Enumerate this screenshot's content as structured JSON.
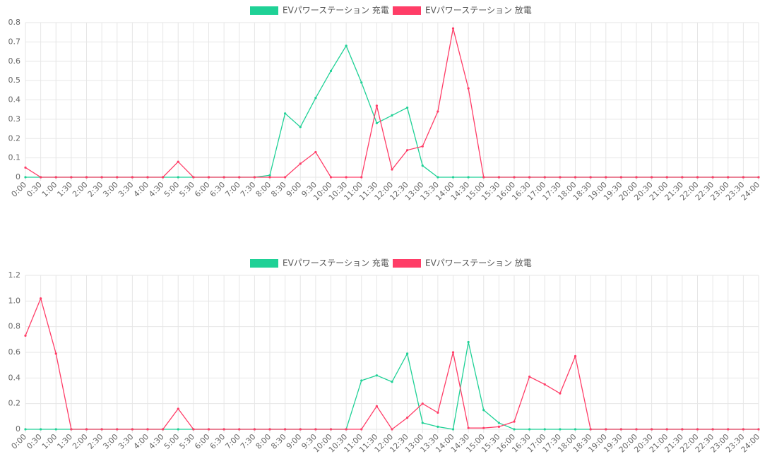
{
  "chart_data": [
    {
      "type": "line",
      "categories": [
        "0:00",
        "0:30",
        "1:00",
        "1:30",
        "2:00",
        "2:30",
        "3:00",
        "3:30",
        "4:00",
        "4:30",
        "5:00",
        "5:30",
        "6:00",
        "6:30",
        "7:00",
        "7:30",
        "8:00",
        "8:30",
        "9:00",
        "9:30",
        "10:00",
        "10:30",
        "11:00",
        "11:30",
        "12:00",
        "12:30",
        "13:00",
        "13:30",
        "14:00",
        "14:30",
        "15:00",
        "15:30",
        "16:00",
        "16:30",
        "17:00",
        "17:30",
        "18:00",
        "18:30",
        "19:00",
        "19:30",
        "20:00",
        "20:30",
        "21:00",
        "21:30",
        "22:00",
        "22:30",
        "23:00",
        "23:30",
        "24:00"
      ],
      "series": [
        {
          "name": "EVパワーステーション 充電",
          "color": "#1fd196",
          "values": [
            0,
            0,
            0,
            0,
            0,
            0,
            0,
            0,
            0,
            0,
            0,
            0,
            0,
            0,
            0,
            0,
            0.01,
            0.33,
            0.26,
            0.41,
            0.55,
            0.68,
            0.49,
            0.28,
            0.32,
            0.36,
            0.06,
            0,
            0,
            0,
            0,
            0,
            0,
            0,
            0,
            0,
            0,
            0,
            0,
            0,
            0,
            0,
            0,
            0,
            0,
            0,
            0,
            0,
            0
          ]
        },
        {
          "name": "EVパワーステーション 放電",
          "color": "#ff3d67",
          "values": [
            0.05,
            0,
            0,
            0,
            0,
            0,
            0,
            0,
            0,
            0,
            0.08,
            0,
            0,
            0,
            0,
            0,
            0,
            0,
            0.07,
            0.13,
            0,
            0,
            0,
            0.37,
            0.04,
            0.14,
            0.16,
            0.34,
            0.77,
            0.46,
            0,
            0,
            0,
            0,
            0,
            0,
            0,
            0,
            0,
            0,
            0,
            0,
            0,
            0,
            0,
            0,
            0,
            0,
            0
          ]
        }
      ],
      "ylim": [
        0,
        0.8
      ],
      "yticks": [
        0,
        0.1,
        0.2,
        0.3,
        0.4,
        0.5,
        0.6,
        0.7,
        0.8
      ],
      "grid": true,
      "legend": "top"
    },
    {
      "type": "line",
      "categories": [
        "0:00",
        "0:30",
        "1:00",
        "1:30",
        "2:00",
        "2:30",
        "3:00",
        "3:30",
        "4:00",
        "4:30",
        "5:00",
        "5:30",
        "6:00",
        "6:30",
        "7:00",
        "7:30",
        "8:00",
        "8:30",
        "9:00",
        "9:30",
        "10:00",
        "10:30",
        "11:00",
        "11:30",
        "12:00",
        "12:30",
        "13:00",
        "13:30",
        "14:00",
        "14:30",
        "15:00",
        "15:30",
        "16:00",
        "16:30",
        "17:00",
        "17:30",
        "18:00",
        "18:30",
        "19:00",
        "19:30",
        "20:00",
        "20:30",
        "21:00",
        "21:30",
        "22:00",
        "22:30",
        "23:00",
        "23:30",
        "24:00"
      ],
      "series": [
        {
          "name": "EVパワーステーション 充電",
          "color": "#1fd196",
          "values": [
            0,
            0,
            0,
            0,
            0,
            0,
            0,
            0,
            0,
            0,
            0,
            0,
            0,
            0,
            0,
            0,
            0,
            0,
            0,
            0,
            0,
            0,
            0.38,
            0.42,
            0.37,
            0.59,
            0.05,
            0.02,
            0,
            0.68,
            0.15,
            0.05,
            0,
            0,
            0,
            0,
            0,
            0,
            0,
            0,
            0,
            0,
            0,
            0,
            0,
            0,
            0,
            0,
            0
          ]
        },
        {
          "name": "EVパワーステーション 放電",
          "color": "#ff3d67",
          "values": [
            0.73,
            1.02,
            0.59,
            0,
            0,
            0,
            0,
            0,
            0,
            0,
            0.16,
            0,
            0,
            0,
            0,
            0,
            0,
            0,
            0,
            0,
            0,
            0,
            0,
            0.18,
            0,
            0.09,
            0.2,
            0.13,
            0.6,
            0.01,
            0.01,
            0.02,
            0.06,
            0.41,
            0.35,
            0.28,
            0.57,
            0,
            0,
            0,
            0,
            0,
            0,
            0,
            0,
            0,
            0,
            0,
            0
          ]
        }
      ],
      "ylim": [
        0,
        1.2
      ],
      "yticks": [
        0,
        0.2,
        0.4,
        0.6,
        0.8,
        {
          "value": 1,
          "label": "1.0"
        },
        {
          "value": 1.2,
          "label": "1.2"
        }
      ],
      "grid": true,
      "legend": "top"
    }
  ]
}
